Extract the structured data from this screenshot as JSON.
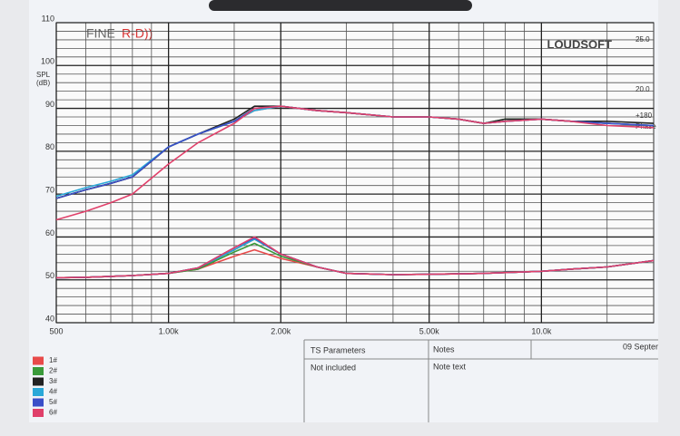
{
  "chart_data": {
    "type": "line",
    "log_x": true,
    "grid": true,
    "brand": "FINE",
    "brand_mark": "R-D))",
    "logo": "LOUDSOFT",
    "y_label": [
      "SPL",
      "(dB)"
    ],
    "right_labels": [
      "25.0",
      "20.0",
      "+180",
      "Phase"
    ],
    "x": [
      500,
      600,
      700,
      800,
      1000,
      1200,
      1500,
      1700,
      2000,
      2500,
      3000,
      4000,
      5000,
      6000,
      7000,
      8000,
      10000,
      12000,
      15000,
      20000
    ],
    "xlim": [
      500,
      20000
    ],
    "xticks": [
      500,
      {
        "value": 1000,
        "label": "1.00k"
      },
      {
        "value": 2000,
        "label": "2.00k"
      },
      {
        "value": 5000,
        "label": "5.00k"
      },
      {
        "value": 10000,
        "label": "10.0k"
      }
    ],
    "xgrid": [
      600,
      700,
      800,
      900,
      1500,
      3000,
      4000,
      6000,
      7000,
      8000,
      9000,
      15000
    ],
    "ylim": [
      40,
      110
    ],
    "yticks": [
      40,
      50,
      60,
      70,
      80,
      90,
      100,
      110
    ],
    "ygrid": [
      42,
      44,
      46,
      48,
      52,
      54,
      56,
      58,
      62,
      64,
      66,
      68,
      72,
      74,
      76,
      78,
      82,
      84,
      86,
      88,
      92,
      94,
      96,
      98,
      102,
      104,
      106,
      108
    ],
    "series": [
      {
        "name": "1#",
        "color": "#e84a4a",
        "values": [
          69,
          71,
          72.5,
          74,
          81,
          84,
          87,
          89.5,
          90.5,
          89.5,
          89,
          88,
          88,
          87.5,
          86.5,
          87,
          87.5,
          87,
          86.5,
          86
        ],
        "impedance": [
          50.5,
          50.6,
          50.8,
          51,
          51.5,
          52.5,
          55.5,
          57,
          55,
          53,
          51.5,
          51.2,
          51.3,
          51.4,
          51.5,
          51.7,
          52,
          52.5,
          53,
          54.5
        ]
      },
      {
        "name": "2#",
        "color": "#3a9a3a",
        "values": [
          69,
          71,
          72.5,
          74,
          81,
          84,
          87,
          90,
          90.5,
          89.5,
          89,
          88,
          88,
          87.5,
          86.5,
          87.5,
          87.5,
          87,
          86.5,
          86
        ],
        "impedance": [
          50.5,
          50.6,
          50.8,
          51,
          51.5,
          52.5,
          56.5,
          58.5,
          55.5,
          53,
          51.5,
          51.2,
          51.3,
          51.4,
          51.5,
          51.7,
          52,
          52.5,
          53,
          54.5
        ]
      },
      {
        "name": "3#",
        "color": "#222222",
        "values": [
          69,
          71,
          72.5,
          74,
          81,
          84,
          87.5,
          90.5,
          90.5,
          89.5,
          89,
          88,
          88,
          87.5,
          86.5,
          87.5,
          87.5,
          87,
          87,
          86.5
        ],
        "impedance": [
          50.5,
          50.6,
          50.8,
          51,
          51.5,
          52.8,
          57,
          59.5,
          56,
          53,
          51.5,
          51.2,
          51.3,
          51.4,
          51.5,
          51.7,
          52,
          52.5,
          53,
          54.5
        ]
      },
      {
        "name": "4#",
        "color": "#2aa8d8",
        "values": [
          69.5,
          71.5,
          73,
          74.5,
          81,
          84,
          87,
          89.5,
          90.5,
          89.5,
          89,
          88,
          88,
          87.5,
          86.5,
          87,
          87.5,
          87,
          86.5,
          86
        ],
        "impedance": [
          50.5,
          50.6,
          50.8,
          51,
          51.5,
          52.8,
          57,
          59.5,
          56,
          53,
          51.5,
          51.2,
          51.3,
          51.4,
          51.5,
          51.7,
          52,
          52.5,
          53,
          54.5
        ]
      },
      {
        "name": "5#",
        "color": "#3a4ec8",
        "values": [
          69,
          71,
          72.5,
          74,
          81,
          84,
          87,
          90,
          90.5,
          89.5,
          89,
          88,
          88,
          87.5,
          86.5,
          87,
          87.5,
          87,
          86.5,
          86
        ],
        "impedance": [
          50.5,
          50.6,
          50.8,
          51,
          51.5,
          52.8,
          57.5,
          59.8,
          56,
          53,
          51.5,
          51.2,
          51.3,
          51.4,
          51.5,
          51.7,
          52,
          52.5,
          53,
          54.5
        ]
      },
      {
        "name": "6#",
        "color": "#e0406a",
        "values": [
          64,
          66,
          68,
          70,
          77,
          82,
          86.5,
          90,
          90.5,
          89.5,
          89,
          88,
          88,
          87.5,
          86.5,
          87,
          87.5,
          87,
          86,
          85.5
        ],
        "impedance": [
          50.5,
          50.6,
          50.8,
          51,
          51.5,
          52.8,
          57.5,
          60,
          56,
          53,
          51.5,
          51.2,
          51.3,
          51.4,
          51.5,
          51.7,
          52,
          52.5,
          53,
          54.5
        ]
      }
    ],
    "table": {
      "headers": [
        "TS Parameters",
        "Notes",
        "09 Septer"
      ],
      "cells": [
        "Not included",
        "Note text"
      ]
    }
  }
}
